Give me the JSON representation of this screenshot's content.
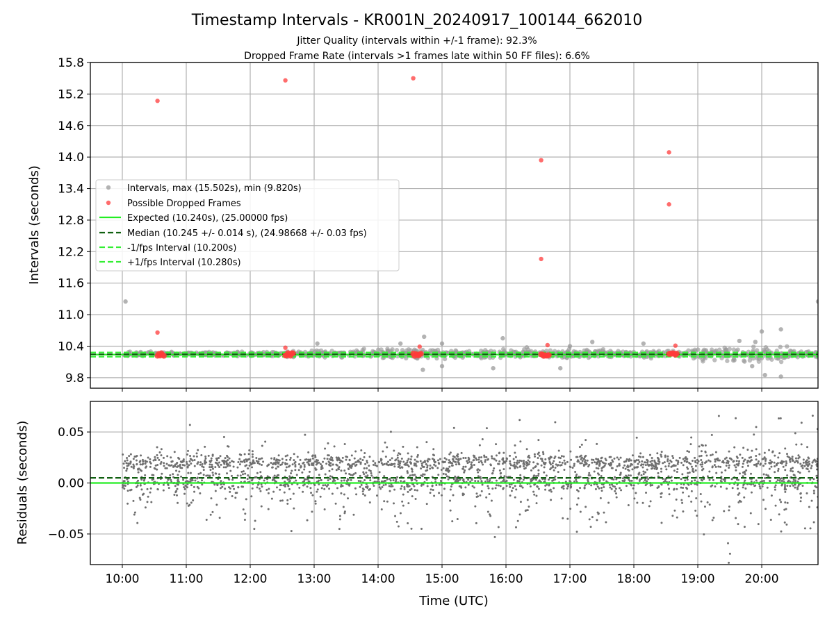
{
  "chart_data": [
    {
      "type": "scatter",
      "title": "Timestamp Intervals - KR001N_20240917_100144_662010",
      "subtitle_lines": [
        "Jitter Quality (intervals within +/-1 frame): 92.3%",
        "Dropped Frame Rate (intervals >1 frames late within 50 FF files): 6.6%"
      ],
      "ylabel": "Intervals (seconds)",
      "xlabel": "",
      "xlim": [
        9.5,
        20.88
      ],
      "ylim": [
        9.6,
        15.8
      ],
      "grid": true,
      "yticks": [
        9.8,
        10.4,
        11.0,
        11.6,
        12.2,
        12.8,
        13.4,
        14.0,
        14.6,
        15.2,
        15.8
      ],
      "ytick_labels": [
        "9.8",
        "10.4",
        "11.0",
        "11.6",
        "12.2",
        "12.8",
        "13.4",
        "14.0",
        "14.6",
        "15.2",
        "15.8"
      ],
      "legend": {
        "placement": "center-left",
        "entries": [
          "Intervals, max (15.502s), min (9.820s)",
          "Possible Dropped Frames",
          "Expected (10.240s), (25.00000 fps)",
          "Median (10.245 +/- 0.014 s), (24.98668 +/- 0.03 fps)",
          "-1/fps Interval (10.200s)",
          "+1/fps Interval (10.280s)"
        ]
      },
      "lines": {
        "expected": 10.24,
        "median": 10.245,
        "minus_one_frame": 10.2,
        "plus_one_frame": 10.28
      },
      "dropped_frames": {
        "x": [
          10.55,
          12.55,
          14.55,
          16.55,
          16.55,
          18.55,
          18.55,
          10.55,
          12.55,
          14.65,
          16.65,
          18.65
        ],
        "y": [
          15.07,
          15.46,
          15.5,
          13.94,
          12.06,
          14.09,
          13.1,
          10.66,
          10.37,
          10.39,
          10.42,
          10.41
        ]
      },
      "dropped_frame_clusters": [
        10.55,
        10.57,
        10.59,
        10.61,
        10.63,
        10.65,
        12.55,
        12.57,
        12.59,
        12.61,
        12.63,
        12.65,
        12.67,
        14.55,
        14.57,
        14.59,
        14.61,
        14.63,
        14.65,
        14.67,
        16.55,
        16.57,
        16.59,
        16.61,
        16.63,
        16.65,
        16.67,
        18.55,
        18.57,
        18.59,
        18.61,
        18.63,
        18.65,
        18.67
      ],
      "intervals_outliers": {
        "x": [
          10.05,
          20.88,
          20.3,
          20.3,
          20.0,
          20.05,
          14.72,
          14.7,
          16.85,
          19.85,
          15.8,
          13.05,
          14.35,
          15.0,
          15.95,
          17.35,
          17.0,
          18.15,
          19.65,
          19.9,
          15.0
        ],
        "y": [
          11.25,
          11.25,
          10.72,
          9.82,
          10.68,
          9.85,
          10.58,
          9.95,
          9.98,
          10.02,
          9.98,
          10.45,
          10.45,
          10.45,
          10.55,
          10.48,
          10.4,
          10.45,
          10.5,
          10.48,
          10.02
        ]
      },
      "intervals_density": [
        {
          "from": 10.0,
          "to": 11.0,
          "spread": 0.03
        },
        {
          "from": 11.0,
          "to": 12.5,
          "spread": 0.025
        },
        {
          "from": 12.5,
          "to": 13.5,
          "spread": 0.05
        },
        {
          "from": 13.5,
          "to": 15.0,
          "spread": 0.09
        },
        {
          "from": 15.0,
          "to": 17.5,
          "spread": 0.08
        },
        {
          "from": 17.5,
          "to": 19.0,
          "spread": 0.07
        },
        {
          "from": 19.0,
          "to": 20.4,
          "spread": 0.13
        },
        {
          "from": 20.4,
          "to": 20.88,
          "spread": 0.06
        }
      ]
    },
    {
      "type": "scatter",
      "ylabel": "Residuals (seconds)",
      "xlabel": "Time (UTC)",
      "xlim": [
        9.5,
        20.88
      ],
      "ylim": [
        -0.08,
        0.08
      ],
      "grid": true,
      "yticks": [
        -0.05,
        0.0,
        0.05
      ],
      "ytick_labels": [
        "−0.05",
        "0.00",
        "0.05"
      ],
      "xticks": [
        10,
        11,
        12,
        13,
        14,
        15,
        16,
        17,
        18,
        19,
        20
      ],
      "xtick_labels": [
        "10:00",
        "11:00",
        "12:00",
        "13:00",
        "14:00",
        "15:00",
        "16:00",
        "17:00",
        "18:00",
        "19:00",
        "20:00"
      ],
      "lines": {
        "expected": 0.0,
        "median": 0.005
      },
      "residual_bands": [
        {
          "from": 10.0,
          "to": 11.0,
          "spread": 0.022
        },
        {
          "from": 11.0,
          "to": 12.5,
          "spread": 0.024
        },
        {
          "from": 12.5,
          "to": 14.5,
          "spread": 0.028
        },
        {
          "from": 14.5,
          "to": 16.0,
          "spread": 0.027
        },
        {
          "from": 16.0,
          "to": 17.5,
          "spread": 0.03
        },
        {
          "from": 17.5,
          "to": 18.8,
          "spread": 0.024
        },
        {
          "from": 18.8,
          "to": 20.88,
          "spread": 0.035
        }
      ]
    }
  ],
  "colors": {
    "intervals": "#9a9a9a",
    "residuals": "#6f6f6f",
    "dropped": "#ff3b3b",
    "expected": "#22ee22",
    "median": "#106010",
    "bound": "#33ee33",
    "grid": "#b0b0b0"
  }
}
